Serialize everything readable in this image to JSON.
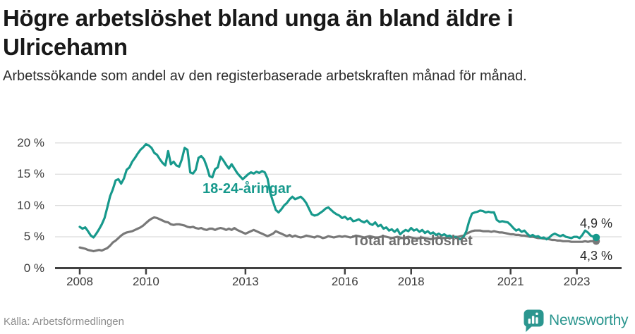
{
  "header": {
    "title": "Högre arbetslöshet bland unga än bland äldre i Ulricehamn",
    "subtitle": "Arbetssökande som andel av den registerbaserade arbetskraften månad för månad."
  },
  "footer": {
    "source": "Källa: Arbetsförmedlingen",
    "brand_name": "Newsworthy",
    "brand_icon": "newsworthy-chart-bubble-icon"
  },
  "colors": {
    "youth_line": "#17998c",
    "total_line": "#787878",
    "total_label": "#6f6f6f",
    "grid": "#dedede",
    "axis": "#414141",
    "title_text": "#191919",
    "tick_text": "#3a3a3a",
    "end_label_text": "#2b2b2b",
    "source_text": "#8c8c8c",
    "brand": "#2b968f",
    "background": "#ffffff"
  },
  "chart_data": {
    "type": "line",
    "title": "Högre arbetslöshet bland unga än bland äldre i Ulricehamn",
    "subtitle": "Arbetssökande som andel av den registerbaserade arbetskraften månad för månad.",
    "unit": "percent of registered labour force",
    "frequency": "monthly",
    "x_start": "2008-01",
    "x_end": "2023-08",
    "x_ticks": [
      2008,
      2010,
      2013,
      2016,
      2018,
      2021,
      2023
    ],
    "x_tick_labels": [
      "2008",
      "2010",
      "2013",
      "2016",
      "2018",
      "2021",
      "2023"
    ],
    "y_ticks": [
      20,
      15,
      10,
      5,
      0
    ],
    "y_tick_labels": [
      "20 %",
      "15 %",
      "10 %",
      "5 %",
      "0 %"
    ],
    "ylim": [
      0,
      21.5
    ],
    "grid": true,
    "legend_position": "inline-labels",
    "series": [
      {
        "name": "Total arbetslöshet",
        "color": "#787878",
        "end_label": "4,3 %",
        "last_value": 4.3,
        "values": [
          3.3,
          3.2,
          3.1,
          2.9,
          2.8,
          2.7,
          2.8,
          2.9,
          2.8,
          3.0,
          3.2,
          3.6,
          4.1,
          4.4,
          4.8,
          5.2,
          5.5,
          5.7,
          5.8,
          5.9,
          6.1,
          6.3,
          6.5,
          6.8,
          7.2,
          7.6,
          7.9,
          8.1,
          8.0,
          7.8,
          7.6,
          7.4,
          7.3,
          7.0,
          6.9,
          7.0,
          7.0,
          6.9,
          6.8,
          6.6,
          6.5,
          6.6,
          6.4,
          6.3,
          6.4,
          6.2,
          6.1,
          6.3,
          6.3,
          6.1,
          6.3,
          6.4,
          6.3,
          6.1,
          6.3,
          6.1,
          6.4,
          6.1,
          5.9,
          5.7,
          5.5,
          5.7,
          5.9,
          6.1,
          5.9,
          5.7,
          5.5,
          5.3,
          5.1,
          5.3,
          5.5,
          5.9,
          5.7,
          5.5,
          5.3,
          5.1,
          5.3,
          5.0,
          5.2,
          5.0,
          4.9,
          5.0,
          5.2,
          5.1,
          5.0,
          4.9,
          5.1,
          5.0,
          4.8,
          4.9,
          5.1,
          5.0,
          4.9,
          5.0,
          5.1,
          5.0,
          5.1,
          5.0,
          4.9,
          5.0,
          5.2,
          5.1,
          5.0,
          4.9,
          5.0,
          5.1,
          5.0,
          4.9,
          4.9,
          5.0,
          5.1,
          5.0,
          4.9,
          4.8,
          4.9,
          5.0,
          4.9,
          4.8,
          4.9,
          5.0,
          4.9,
          4.8,
          4.7,
          4.8,
          4.9,
          4.8,
          4.7,
          4.6,
          4.7,
          4.8,
          4.9,
          4.8,
          4.8,
          4.9,
          4.8,
          4.9,
          5.0,
          5.0,
          5.1,
          5.2,
          5.5,
          5.7,
          5.9,
          6.0,
          6.0,
          6.0,
          5.9,
          5.9,
          5.9,
          5.8,
          5.9,
          5.8,
          5.7,
          5.7,
          5.6,
          5.5,
          5.4,
          5.4,
          5.3,
          5.3,
          5.2,
          5.2,
          5.1,
          5.0,
          5.0,
          4.9,
          4.8,
          4.8,
          4.7,
          4.7,
          4.6,
          4.5,
          4.5,
          4.4,
          4.4,
          4.3,
          4.3,
          4.3,
          4.2,
          4.2,
          4.2,
          4.2,
          4.2,
          4.3,
          4.2,
          4.3,
          4.3,
          4.3
        ]
      },
      {
        "name": "18-24-åringar",
        "color": "#17998c",
        "end_label": "4,9 %",
        "last_value": 4.9,
        "values": [
          6.6,
          6.3,
          6.5,
          5.9,
          5.2,
          4.9,
          5.5,
          6.2,
          7.0,
          8.0,
          9.7,
          11.5,
          12.6,
          14.0,
          14.2,
          13.5,
          14.3,
          15.7,
          16.1,
          17.0,
          17.6,
          18.3,
          18.9,
          19.3,
          19.8,
          19.6,
          19.2,
          18.4,
          18.1,
          17.4,
          16.8,
          16.4,
          18.7,
          16.6,
          17.0,
          16.4,
          16.2,
          17.4,
          19.2,
          18.9,
          15.3,
          15.1,
          15.7,
          17.6,
          17.9,
          17.4,
          16.2,
          14.7,
          14.5,
          15.8,
          16.1,
          17.8,
          17.2,
          16.5,
          15.9,
          16.6,
          15.9,
          15.2,
          14.7,
          14.2,
          14.6,
          15.0,
          15.3,
          15.1,
          15.4,
          15.2,
          15.5,
          15.3,
          14.3,
          12.0,
          10.6,
          9.3,
          8.9,
          9.4,
          10.0,
          10.4,
          11.0,
          11.4,
          11.0,
          11.2,
          11.4,
          11.0,
          10.4,
          9.5,
          8.6,
          8.4,
          8.5,
          8.8,
          9.1,
          9.5,
          9.7,
          9.3,
          8.9,
          8.6,
          8.4,
          8.0,
          8.2,
          7.8,
          8.0,
          7.5,
          7.6,
          7.8,
          7.5,
          7.3,
          7.6,
          7.1,
          6.9,
          7.3,
          6.7,
          6.9,
          6.3,
          6.5,
          6.0,
          6.2,
          5.8,
          6.2,
          5.4,
          5.8,
          6.1,
          5.9,
          6.4,
          6.0,
          6.2,
          5.8,
          6.1,
          5.6,
          5.9,
          5.5,
          5.7,
          5.3,
          5.5,
          5.2,
          5.4,
          5.1,
          5.2,
          4.9,
          5.0,
          4.7,
          4.6,
          5.0,
          5.9,
          7.5,
          8.7,
          8.9,
          9.0,
          9.2,
          9.1,
          8.9,
          9.0,
          8.9,
          8.9,
          7.7,
          7.4,
          7.5,
          7.4,
          7.3,
          6.9,
          6.4,
          6.0,
          6.2,
          5.8,
          6.0,
          5.5,
          5.1,
          5.3,
          5.0,
          5.1,
          4.8,
          4.9,
          4.6,
          4.9,
          5.3,
          5.5,
          5.3,
          5.1,
          5.3,
          5.0,
          4.9,
          4.8,
          5.0,
          5.0,
          4.8,
          5.3,
          6.0,
          5.7,
          5.2,
          5.0,
          4.9
        ]
      }
    ]
  }
}
